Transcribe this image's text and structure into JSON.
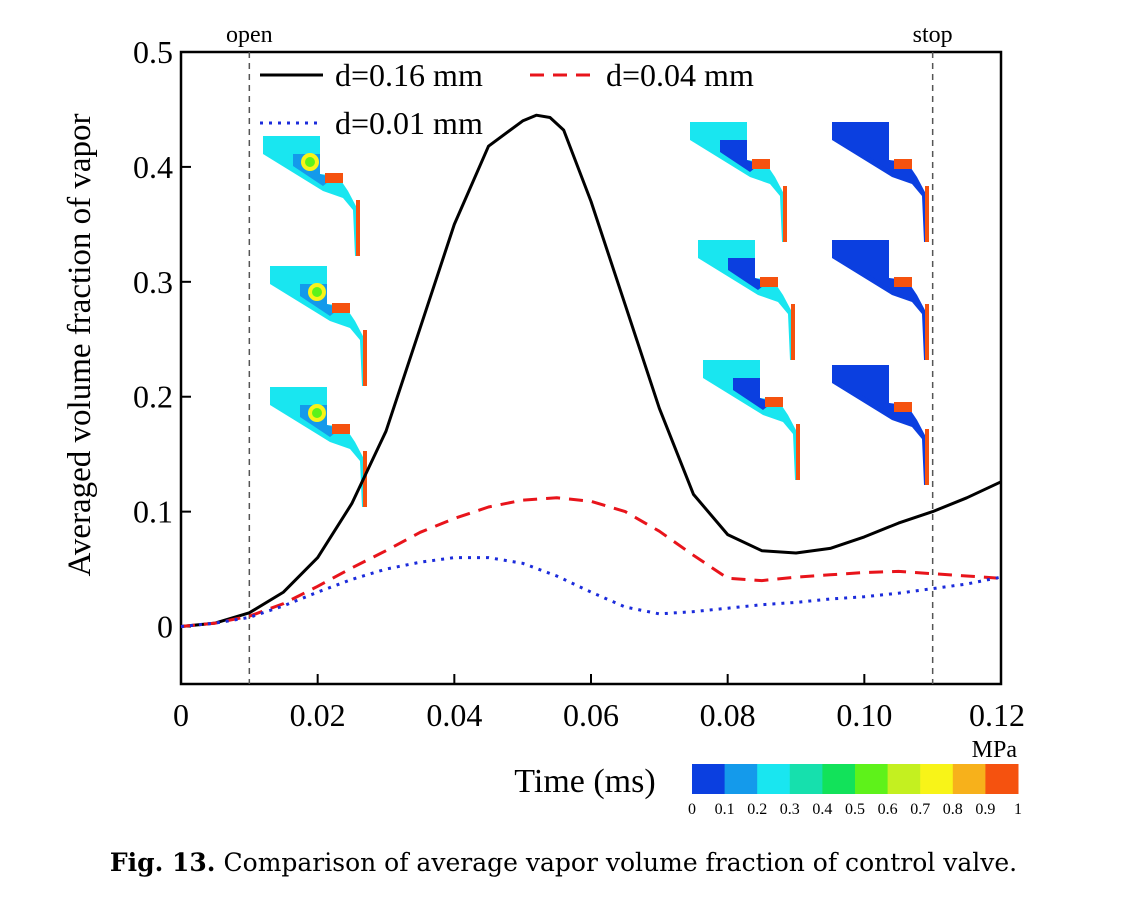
{
  "chart_data": {
    "type": "line",
    "xlabel": "Time (ms)",
    "ylabel": "Averaged volume fraction of vapor",
    "xlim": [
      0,
      0.12
    ],
    "ylim": [
      -0.05,
      0.5
    ],
    "xticks": [
      "0",
      "0.02",
      "0.04",
      "0.06",
      "0.08",
      "0.10",
      "0.12"
    ],
    "yticks": [
      "0",
      "0.1",
      "0.2",
      "0.3",
      "0.4",
      "0.5"
    ],
    "grid": false,
    "legend_position": "top",
    "annotations": [
      {
        "text": "open",
        "x": 0.01
      },
      {
        "text": "stop",
        "x": 0.11
      }
    ],
    "series": [
      {
        "name": "d=0.16 mm",
        "color": "#000000",
        "style": "solid",
        "x": [
          0,
          0.005,
          0.01,
          0.015,
          0.02,
          0.025,
          0.03,
          0.035,
          0.04,
          0.045,
          0.05,
          0.052,
          0.054,
          0.056,
          0.06,
          0.065,
          0.07,
          0.075,
          0.08,
          0.085,
          0.09,
          0.095,
          0.1,
          0.105,
          0.11,
          0.115,
          0.12
        ],
        "y": [
          0.0,
          0.003,
          0.012,
          0.03,
          0.06,
          0.107,
          0.17,
          0.26,
          0.35,
          0.418,
          0.44,
          0.445,
          0.443,
          0.432,
          0.37,
          0.28,
          0.19,
          0.115,
          0.08,
          0.066,
          0.064,
          0.068,
          0.078,
          0.09,
          0.1,
          0.112,
          0.126
        ]
      },
      {
        "name": "d=0.04 mm",
        "color": "#e8141b",
        "style": "dashed",
        "x": [
          0,
          0.005,
          0.01,
          0.015,
          0.02,
          0.025,
          0.03,
          0.035,
          0.04,
          0.045,
          0.05,
          0.055,
          0.06,
          0.065,
          0.07,
          0.075,
          0.08,
          0.085,
          0.09,
          0.095,
          0.1,
          0.105,
          0.11,
          0.115,
          0.12
        ],
        "y": [
          0.0,
          0.003,
          0.009,
          0.02,
          0.035,
          0.051,
          0.066,
          0.082,
          0.094,
          0.104,
          0.11,
          0.112,
          0.109,
          0.1,
          0.083,
          0.062,
          0.042,
          0.04,
          0.043,
          0.045,
          0.047,
          0.048,
          0.046,
          0.044,
          0.042
        ]
      },
      {
        "name": "d=0.01 mm",
        "color": "#1b2bdb",
        "style": "dotted",
        "x": [
          0,
          0.005,
          0.01,
          0.015,
          0.02,
          0.025,
          0.03,
          0.035,
          0.04,
          0.045,
          0.05,
          0.055,
          0.06,
          0.065,
          0.07,
          0.075,
          0.08,
          0.085,
          0.09,
          0.095,
          0.1,
          0.105,
          0.11,
          0.115,
          0.12
        ],
        "y": [
          0.0,
          0.003,
          0.008,
          0.018,
          0.03,
          0.041,
          0.05,
          0.056,
          0.06,
          0.06,
          0.055,
          0.044,
          0.03,
          0.017,
          0.011,
          0.013,
          0.016,
          0.019,
          0.021,
          0.024,
          0.026,
          0.029,
          0.033,
          0.037,
          0.043
        ]
      }
    ],
    "colorbar": {
      "unit": "MPa",
      "labels": [
        "0",
        "0.1",
        "0.2",
        "0.3",
        "0.4",
        "0.5",
        "0.6",
        "0.7",
        "0.8",
        "0.9",
        "1"
      ],
      "colors": [
        "#0b3fe0",
        "#149aeb",
        "#19e6f0",
        "#16e0ad",
        "#12e25a",
        "#5ef21a",
        "#c4f020",
        "#f8f418",
        "#f7b11b",
        "#f5520f"
      ]
    },
    "insets": {
      "count": 10,
      "palette": {
        "base": "#19e6f0",
        "dark": "#0b3fe0",
        "mid": "#149aeb",
        "hot": "#f5520f",
        "warm": "#f8f418",
        "green": "#5ef21a"
      }
    }
  },
  "caption": {
    "label": "Fig. 13.",
    "text": "Comparison of average vapor volume fraction of control valve."
  }
}
